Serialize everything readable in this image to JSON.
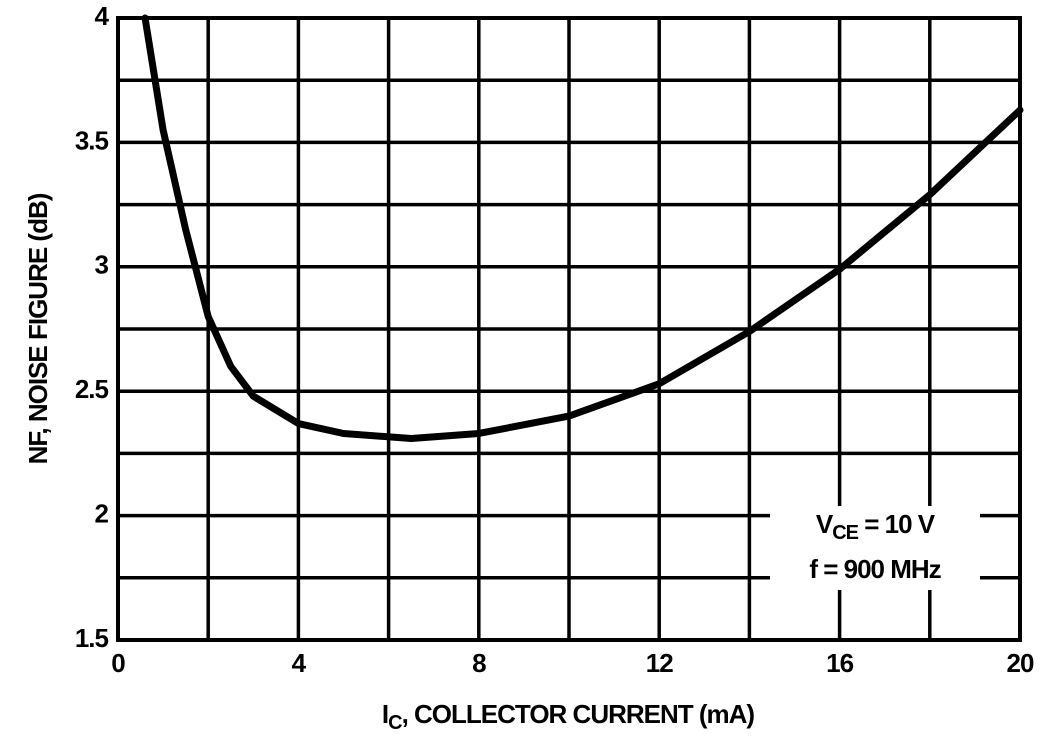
{
  "chart_data": {
    "type": "line",
    "xlabel": {
      "main": "I",
      "sub": "C",
      "rest": ", COLLECTOR CURRENT (mA)"
    },
    "ylabel": "NF, NOISE FIGURE (dB)",
    "annotation": [
      {
        "main": "V",
        "sub": "CE",
        "rest": " = 10 V"
      },
      {
        "main": "f = 900 MHz"
      }
    ],
    "xlim": [
      0,
      20
    ],
    "ylim": [
      1.5,
      4
    ],
    "xticks": [
      0,
      4,
      8,
      12,
      16,
      20
    ],
    "yticks": [
      1.5,
      2,
      2.5,
      3,
      3.5,
      4
    ],
    "xgrid": [
      0,
      2,
      4,
      6,
      8,
      10,
      12,
      14,
      16,
      18,
      20
    ],
    "ygrid": [
      1.5,
      1.75,
      2,
      2.25,
      2.5,
      2.75,
      3,
      3.25,
      3.5,
      3.75,
      4
    ],
    "grid": true,
    "series": [
      {
        "name": null,
        "color": "#000000",
        "x": [
          0.6,
          1,
          1.5,
          2,
          2.5,
          3,
          4,
          5,
          6.5,
          8,
          10,
          12,
          14,
          16,
          18,
          20
        ],
        "values": [
          4.0,
          3.55,
          3.15,
          2.8,
          2.6,
          2.48,
          2.37,
          2.33,
          2.31,
          2.33,
          2.4,
          2.53,
          2.74,
          2.99,
          3.29,
          3.63
        ]
      }
    ]
  }
}
